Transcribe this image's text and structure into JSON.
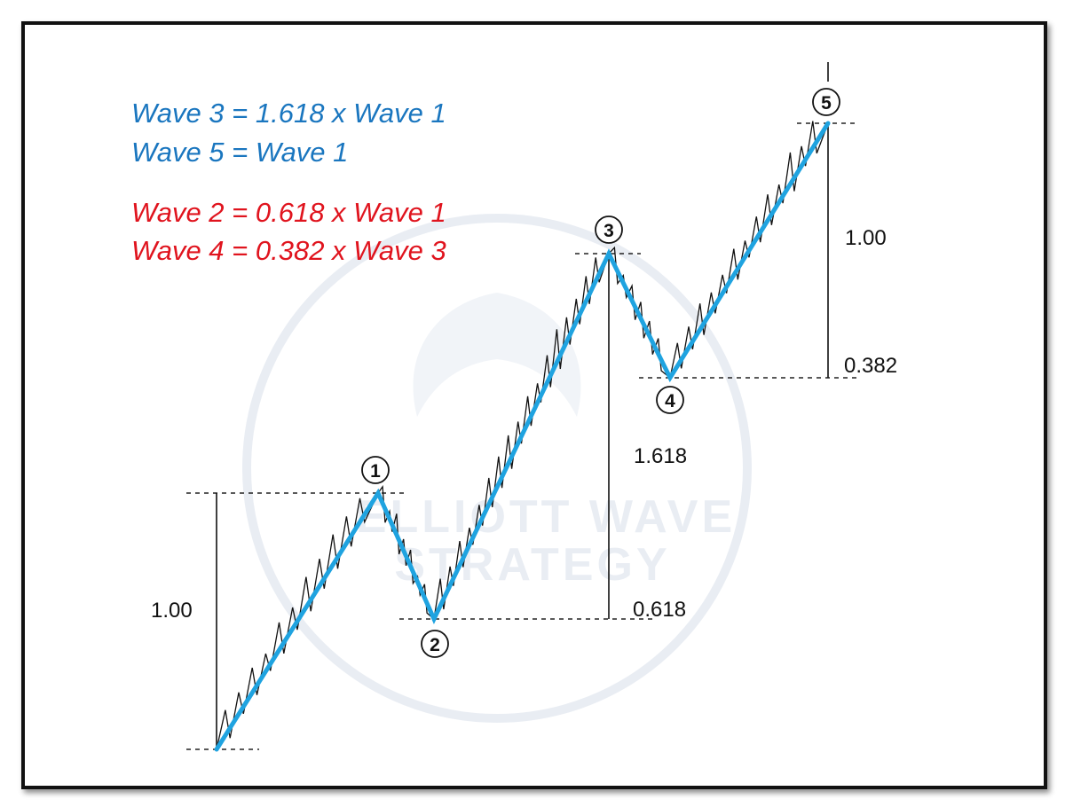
{
  "colors": {
    "blue": "#1a76bf",
    "red": "#e0141e",
    "wave_line": "#1fa3e0",
    "price_line": "#111111",
    "watermark": "#e9edf3"
  },
  "rules_blue": [
    "Wave 3 = 1.618 x Wave 1",
    "Wave 5 = Wave 1"
  ],
  "rules_red": [
    "Wave 2 = 0.618 x Wave 1",
    "Wave 4 = 0.382 x Wave 3"
  ],
  "waves": [
    {
      "label": "1"
    },
    {
      "label": "2"
    },
    {
      "label": "3"
    },
    {
      "label": "4"
    },
    {
      "label": "5"
    }
  ],
  "measurements": {
    "wave1_ratio": "1.00",
    "wave2_ratio": "0.618",
    "wave3_ratio": "1.618",
    "wave4_ratio": "0.382",
    "wave5_ratio": "1.00"
  },
  "watermark": {
    "line1": "ELLIOTT WAVE",
    "line2": "STRATEGY"
  }
}
